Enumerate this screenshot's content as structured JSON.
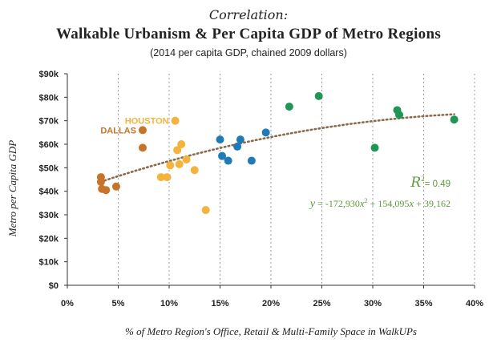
{
  "chart_data": {
    "type": "scatter",
    "title_line1": "Correlation:",
    "title_line2": "Walkable Urbanism & Per Capita GDP of Metro Regions",
    "subtitle": "(2014 per capita GDP, chained 2009 dollars)",
    "xlabel": "% of Metro Region's Office, Retail & Multi-Family Space in WalkUPs",
    "ylabel": "Metro per Capita GDP",
    "xlim": [
      0,
      40
    ],
    "ylim": [
      0,
      90
    ],
    "x_ticks": [
      0,
      5,
      10,
      15,
      20,
      25,
      30,
      35,
      40
    ],
    "x_tick_labels": [
      "0%",
      "5%",
      "10%",
      "15%",
      "20%",
      "25%",
      "30%",
      "35%",
      "40%"
    ],
    "y_ticks": [
      0,
      10,
      20,
      30,
      40,
      50,
      60,
      70,
      80,
      90
    ],
    "y_tick_labels": [
      "$0",
      "$10k",
      "$20k",
      "$30k",
      "$40k",
      "$50k",
      "$60k",
      "$70k",
      "$80k",
      "$90k"
    ],
    "grid": "vertical dotted",
    "series": [
      {
        "name": "dark orange group",
        "color": "#c8732a",
        "points": [
          [
            3.3,
            46
          ],
          [
            3.3,
            44
          ],
          [
            3.4,
            41
          ],
          [
            3.8,
            40.5
          ],
          [
            4.8,
            42
          ],
          [
            7.4,
            66
          ],
          [
            7.4,
            58.5
          ]
        ]
      },
      {
        "name": "yellow group",
        "color": "#f4b33c",
        "points": [
          [
            9.2,
            46
          ],
          [
            9.8,
            46
          ],
          [
            10.1,
            51
          ],
          [
            10.6,
            70
          ],
          [
            10.8,
            57.5
          ],
          [
            11.0,
            51.5
          ],
          [
            11.2,
            60
          ],
          [
            11.7,
            53.5
          ],
          [
            12.5,
            49
          ],
          [
            13.6,
            32
          ]
        ]
      },
      {
        "name": "blue group",
        "color": "#1f7ab6",
        "points": [
          [
            15.0,
            62
          ],
          [
            15.2,
            55
          ],
          [
            15.8,
            53
          ],
          [
            16.7,
            59
          ],
          [
            17.0,
            62
          ],
          [
            18.1,
            53
          ],
          [
            19.5,
            65
          ]
        ]
      },
      {
        "name": "green group",
        "color": "#1f9654",
        "points": [
          [
            21.8,
            76
          ],
          [
            24.7,
            80.5
          ],
          [
            30.2,
            58.5
          ],
          [
            32.4,
            74.5
          ],
          [
            32.6,
            72.5
          ],
          [
            38.0,
            70.5
          ]
        ]
      }
    ],
    "labels": [
      {
        "text": "HOUSTON",
        "color": "#f4b33c",
        "x": 10.6,
        "y": 70
      },
      {
        "text": "DALLAS",
        "color": "#c8732a",
        "x": 7.4,
        "y": 66
      }
    ],
    "trendline": {
      "type": "polynomial",
      "color": "#8a6a4a",
      "a": -172930,
      "b": 154095,
      "c": 39162,
      "x_range": [
        3.3,
        38.0
      ]
    },
    "annotation": {
      "r2_symbol": "R",
      "r2_sup": "2",
      "r2_value": "= 0.49",
      "eq_y": "y",
      "eq_mid": " = -172,930",
      "eq_x1": "x",
      "eq_sup": "2",
      "eq_tail1": " + 154,095",
      "eq_x2": "x",
      "eq_tail2": " + 39,162",
      "color": "#5a9a3a"
    }
  }
}
